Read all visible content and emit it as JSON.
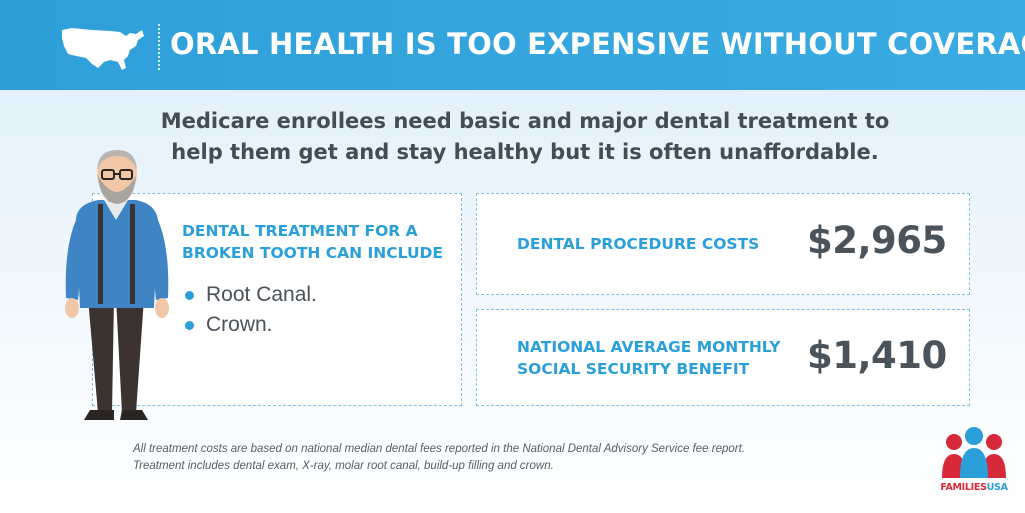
{
  "header": {
    "title": "ORAL HEALTH IS TOO EXPENSIVE WITHOUT COVERAGE",
    "map_icon": "us-map-icon"
  },
  "intro": {
    "line1": "Medicare enrollees need basic and major dental treatment to",
    "line2": "help them get and stay healthy but it is often unaffordable."
  },
  "treatment_card": {
    "title_line1": "DENTAL TREATMENT FOR A",
    "title_line2": "BROKEN TOOTH CAN INCLUDE",
    "items": [
      "Root Canal.",
      "Crown."
    ]
  },
  "procedure_card": {
    "label": "DENTAL PROCEDURE COSTS",
    "value": "$2,965"
  },
  "social_security_card": {
    "label_line1": "NATIONAL AVERAGE MONTHLY",
    "label_line2": "SOCIAL SECURITY BENEFIT",
    "value": "$1,410"
  },
  "footnote": {
    "line1": "All treatment costs are based on national median dental fees reported in the National Dental Advisory Service fee report.",
    "line2": "Treatment includes dental exam, X-ray, molar root canal, build-up filling and crown."
  },
  "logo": {
    "part1": "FAMILIES",
    "part2": "USA"
  },
  "colors": {
    "banner": "#3aabe3",
    "accent": "#2a9fd9",
    "text": "#444c54",
    "logo_red": "#d62a3b"
  }
}
